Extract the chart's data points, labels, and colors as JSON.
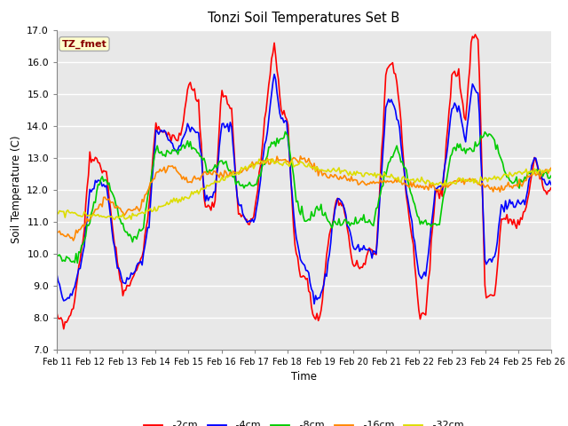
{
  "title": "Tonzi Soil Temperatures Set B",
  "xlabel": "Time",
  "ylabel": "Soil Temperature (C)",
  "ylim": [
    7.0,
    17.0
  ],
  "yticks": [
    7.0,
    8.0,
    9.0,
    10.0,
    11.0,
    12.0,
    13.0,
    14.0,
    15.0,
    16.0,
    17.0
  ],
  "x_labels": [
    "Feb 11",
    "Feb 12",
    "Feb 13",
    "Feb 14",
    "Feb 15",
    "Feb 16",
    "Feb 17",
    "Feb 18",
    "Feb 19",
    "Feb 20",
    "Feb 21",
    "Feb 22",
    "Feb 23",
    "Feb 24",
    "Feb 25",
    "Feb 26"
  ],
  "annotation_text": "TZ_fmet",
  "annotation_bg": "#ffffcc",
  "annotation_edge": "#aaaaaa",
  "annotation_text_color": "#880000",
  "fig_bg": "#ffffff",
  "plot_bg": "#e8e8e8",
  "grid_color": "#ffffff",
  "series": {
    "-2cm": {
      "color": "#ff0000",
      "lw": 1.2
    },
    "-4cm": {
      "color": "#0000ff",
      "lw": 1.2
    },
    "-8cm": {
      "color": "#00cc00",
      "lw": 1.2
    },
    "-16cm": {
      "color": "#ff8800",
      "lw": 1.2
    },
    "-32cm": {
      "color": "#dddd00",
      "lw": 1.2
    }
  },
  "legend_order": [
    "-2cm",
    "-4cm",
    "-8cm",
    "-16cm",
    "-32cm"
  ]
}
